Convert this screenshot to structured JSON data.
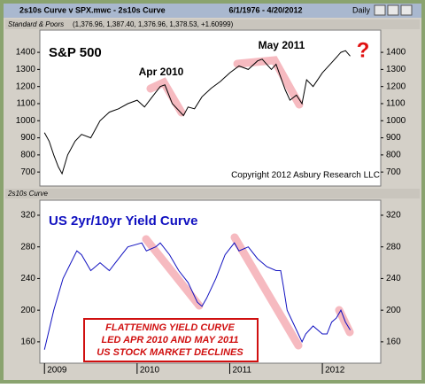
{
  "window": {
    "title": "2s10s Curve v SPX.mwc - 2s10s Curve",
    "range": "6/1/1976 - 4/20/2012",
    "interval": "Daily"
  },
  "chart_data": [
    {
      "type": "line",
      "panel_label": "Standard & Poors",
      "quote": "(1,376.96, 1,387.40, 1,376.96, 1,378.53, +1.60999)",
      "title": "S&P 500",
      "annotations": [
        "Apr 2010",
        "May 2011",
        "?",
        "Copyright 2012 Asbury Research LLC"
      ],
      "color": "#000000",
      "xlim": [
        2008.95,
        2012.63
      ],
      "ylim": [
        618,
        1530
      ],
      "yticks": [
        700,
        800,
        900,
        1000,
        1100,
        1200,
        1300,
        1400
      ],
      "x": [
        2009.0,
        2009.05,
        2009.1,
        2009.15,
        2009.19,
        2009.25,
        2009.33,
        2009.4,
        2009.5,
        2009.55,
        2009.6,
        2009.7,
        2009.8,
        2009.9,
        2010.0,
        2010.08,
        2010.15,
        2010.25,
        2010.3,
        2010.38,
        2010.45,
        2010.5,
        2010.55,
        2010.62,
        2010.7,
        2010.8,
        2010.9,
        2011.0,
        2011.1,
        2011.2,
        2011.3,
        2011.35,
        2011.45,
        2011.5,
        2011.6,
        2011.65,
        2011.72,
        2011.78,
        2011.83,
        2011.9,
        2012.0,
        2012.1,
        2012.2,
        2012.25,
        2012.3
      ],
      "values": [
        930,
        880,
        800,
        730,
        690,
        800,
        880,
        920,
        900,
        950,
        1000,
        1050,
        1070,
        1100,
        1120,
        1080,
        1130,
        1200,
        1210,
        1100,
        1060,
        1030,
        1080,
        1070,
        1140,
        1190,
        1230,
        1280,
        1320,
        1300,
        1350,
        1360,
        1300,
        1330,
        1180,
        1120,
        1150,
        1100,
        1240,
        1200,
        1280,
        1340,
        1400,
        1410,
        1378
      ]
    },
    {
      "type": "line",
      "panel_label": "2s10s Curve",
      "title": "US 2yr/10yr Yield Curve",
      "annotations": [
        "FLATTENING YIELD CURVE",
        "LED APR 2010 AND MAY 2011",
        "US STOCK MARKET DECLINES"
      ],
      "color": "#1010c0",
      "xlim": [
        2008.95,
        2012.63
      ],
      "ylim": [
        133,
        339
      ],
      "yticks": [
        160,
        200,
        240,
        280,
        320
      ],
      "xticks": [
        2009,
        2010,
        2011,
        2012
      ],
      "x": [
        2009.0,
        2009.1,
        2009.2,
        2009.35,
        2009.4,
        2009.5,
        2009.6,
        2009.7,
        2009.8,
        2009.9,
        2010.05,
        2010.1,
        2010.2,
        2010.25,
        2010.35,
        2010.45,
        2010.55,
        2010.65,
        2010.7,
        2010.75,
        2010.85,
        2010.95,
        2011.05,
        2011.1,
        2011.2,
        2011.3,
        2011.4,
        2011.5,
        2011.55,
        2011.58,
        2011.62,
        2011.7,
        2011.78,
        2011.82,
        2011.9,
        2012.0,
        2012.05,
        2012.1,
        2012.15,
        2012.2,
        2012.25,
        2012.3
      ],
      "values": [
        150,
        200,
        240,
        275,
        270,
        250,
        260,
        250,
        265,
        280,
        285,
        275,
        280,
        285,
        270,
        250,
        235,
        210,
        205,
        215,
        240,
        270,
        285,
        275,
        280,
        265,
        255,
        250,
        250,
        230,
        200,
        180,
        160,
        170,
        180,
        170,
        170,
        185,
        190,
        200,
        185,
        175
      ]
    }
  ]
}
